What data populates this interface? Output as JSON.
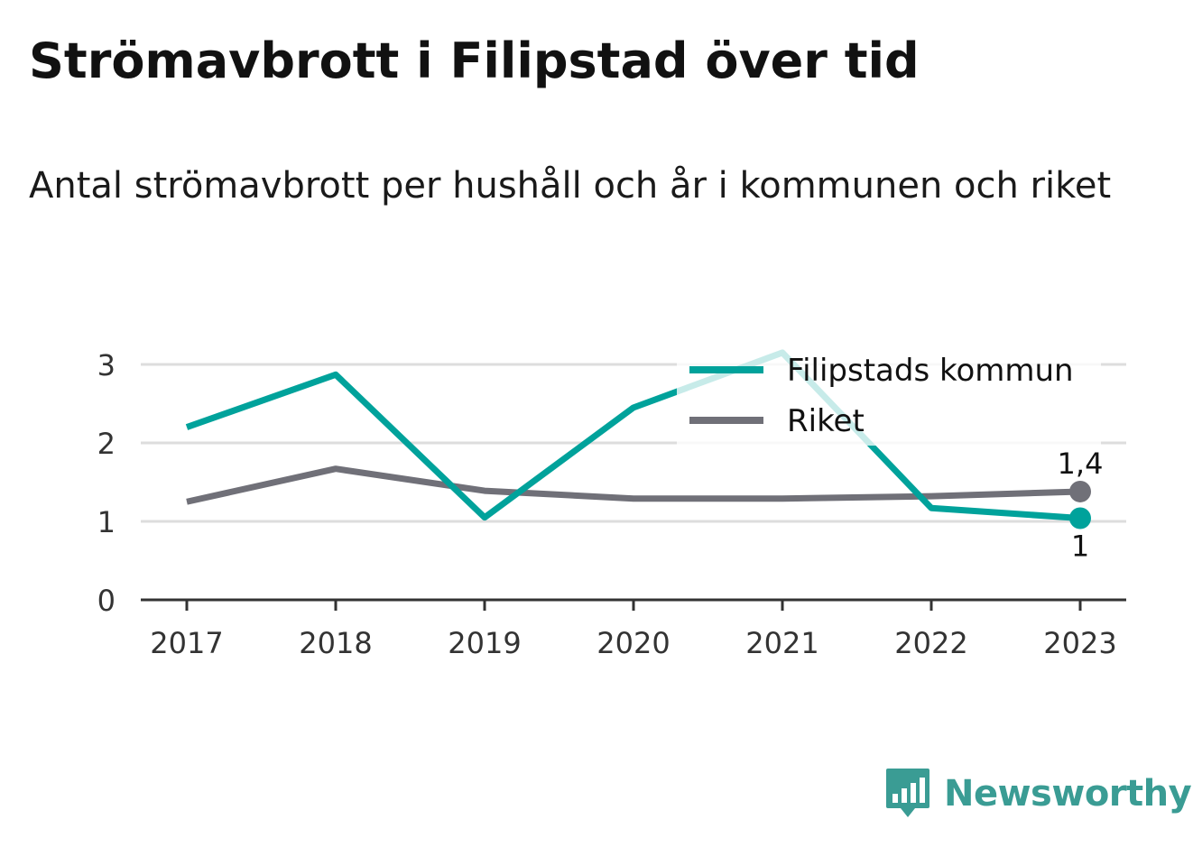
{
  "title": "Strömavbrott i Filipstad över tid",
  "subtitle": "Antal strömavbrott per hushåll och år i kommunen och riket",
  "brand": {
    "name": "Newsworthy",
    "icon": "newsworthy-logo-icon",
    "color": "#3a9c94"
  },
  "chart_data": {
    "type": "line",
    "categories": [
      "2017",
      "2018",
      "2019",
      "2020",
      "2021",
      "2022",
      "2023"
    ],
    "ylim": [
      0,
      3.2
    ],
    "yticks": [
      "0",
      "1",
      "2",
      "3"
    ],
    "grid": true,
    "legend_position": "top-right",
    "series": [
      {
        "name": "Filipstads kommun",
        "color": "#00a29b",
        "values": [
          2.2,
          2.87,
          1.05,
          2.45,
          3.15,
          1.17,
          1.04
        ],
        "end_label": "1"
      },
      {
        "name": "Riket",
        "color": "#707078",
        "values": [
          1.25,
          1.67,
          1.39,
          1.29,
          1.29,
          1.32,
          1.38
        ],
        "end_label": "1,4"
      }
    ]
  }
}
